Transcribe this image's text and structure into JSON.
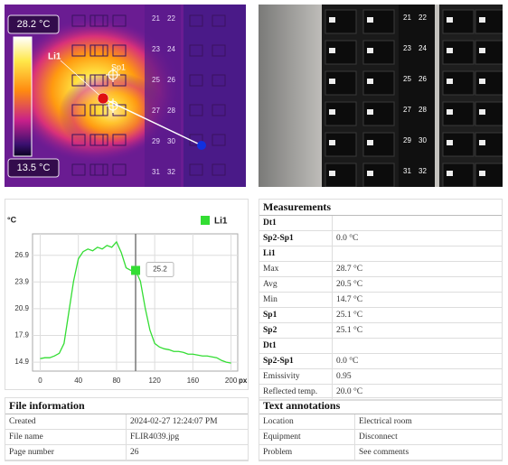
{
  "thermal_image": {
    "scale_max": "28.2 °C",
    "scale_min": "13.5 °C",
    "line_label": "Li1",
    "spot_label": "Sp1"
  },
  "breaker_numbers": [
    "21",
    "22",
    "23",
    "24",
    "25",
    "26",
    "27",
    "28",
    "29",
    "30",
    "31",
    "32"
  ],
  "chart_data": {
    "type": "line",
    "y_label": "°C",
    "x_label": "px",
    "x": [
      0,
      5,
      10,
      15,
      20,
      25,
      30,
      35,
      40,
      45,
      50,
      55,
      60,
      65,
      70,
      75,
      80,
      85,
      90,
      95,
      100,
      105,
      110,
      115,
      120,
      125,
      130,
      135,
      140,
      145,
      150,
      155,
      160,
      165,
      170,
      175,
      180,
      185,
      190,
      195,
      200
    ],
    "series": [
      {
        "name": "Li1",
        "color": "#33dd33",
        "values": [
          15.3,
          15.4,
          15.4,
          15.6,
          15.9,
          17.0,
          20.5,
          24.0,
          26.5,
          27.3,
          27.6,
          27.4,
          27.8,
          27.6,
          28.0,
          27.8,
          28.4,
          27.2,
          25.5,
          25.2,
          25.2,
          24.0,
          21.0,
          18.5,
          17.0,
          16.6,
          16.4,
          16.3,
          16.1,
          16.1,
          16.0,
          15.8,
          15.8,
          15.7,
          15.6,
          15.6,
          15.5,
          15.4,
          15.1,
          14.9,
          14.8
        ]
      }
    ],
    "xlim": [
      -8,
      207
    ],
    "ylim": [
      13.9,
      29.3
    ],
    "xticks": [
      0,
      40,
      80,
      120,
      160,
      200
    ],
    "yticks": [
      14.9,
      17.9,
      20.9,
      23.9,
      26.9
    ],
    "grid": true,
    "cursor": {
      "x": 100,
      "value": 25.2
    }
  },
  "measurements": {
    "title": "Measurements",
    "rows": [
      {
        "label": "Dt1",
        "bold": true
      },
      {
        "label": "Sp2-Sp1",
        "value": "0.0 °C",
        "bold": true
      },
      {
        "label": "Li1",
        "bold": true
      },
      {
        "label": "Max",
        "value": "28.7 °C",
        "bold": false
      },
      {
        "label": "Avg",
        "value": "20.5 °C",
        "bold": false
      },
      {
        "label": "Min",
        "value": "14.7 °C",
        "bold": false
      },
      {
        "label": "Sp1",
        "value": "25.1 °C",
        "bold": true
      },
      {
        "label": "Sp2",
        "value": "25.1 °C",
        "bold": true
      },
      {
        "label": "Dt1",
        "bold": true
      },
      {
        "label": "Sp2-Sp1",
        "value": "0.0 °C",
        "bold": true
      },
      {
        "label": "Emissivity",
        "value": "0.95",
        "bold": false
      },
      {
        "label": "Reflected temp.",
        "value": "20.0 °C",
        "bold": false
      }
    ]
  },
  "file_information": {
    "title": "File information",
    "rows": [
      [
        "Created",
        "2024-02-27 12:24:07 PM"
      ],
      [
        "File name",
        "FLIR4039.jpg"
      ],
      [
        "Page number",
        "26"
      ]
    ]
  },
  "text_annotations": {
    "title": "Text annotations",
    "rows": [
      [
        "Location",
        "Electrical room"
      ],
      [
        "Equipment",
        "Disconnect"
      ],
      [
        "Problem",
        "See comments"
      ]
    ]
  }
}
